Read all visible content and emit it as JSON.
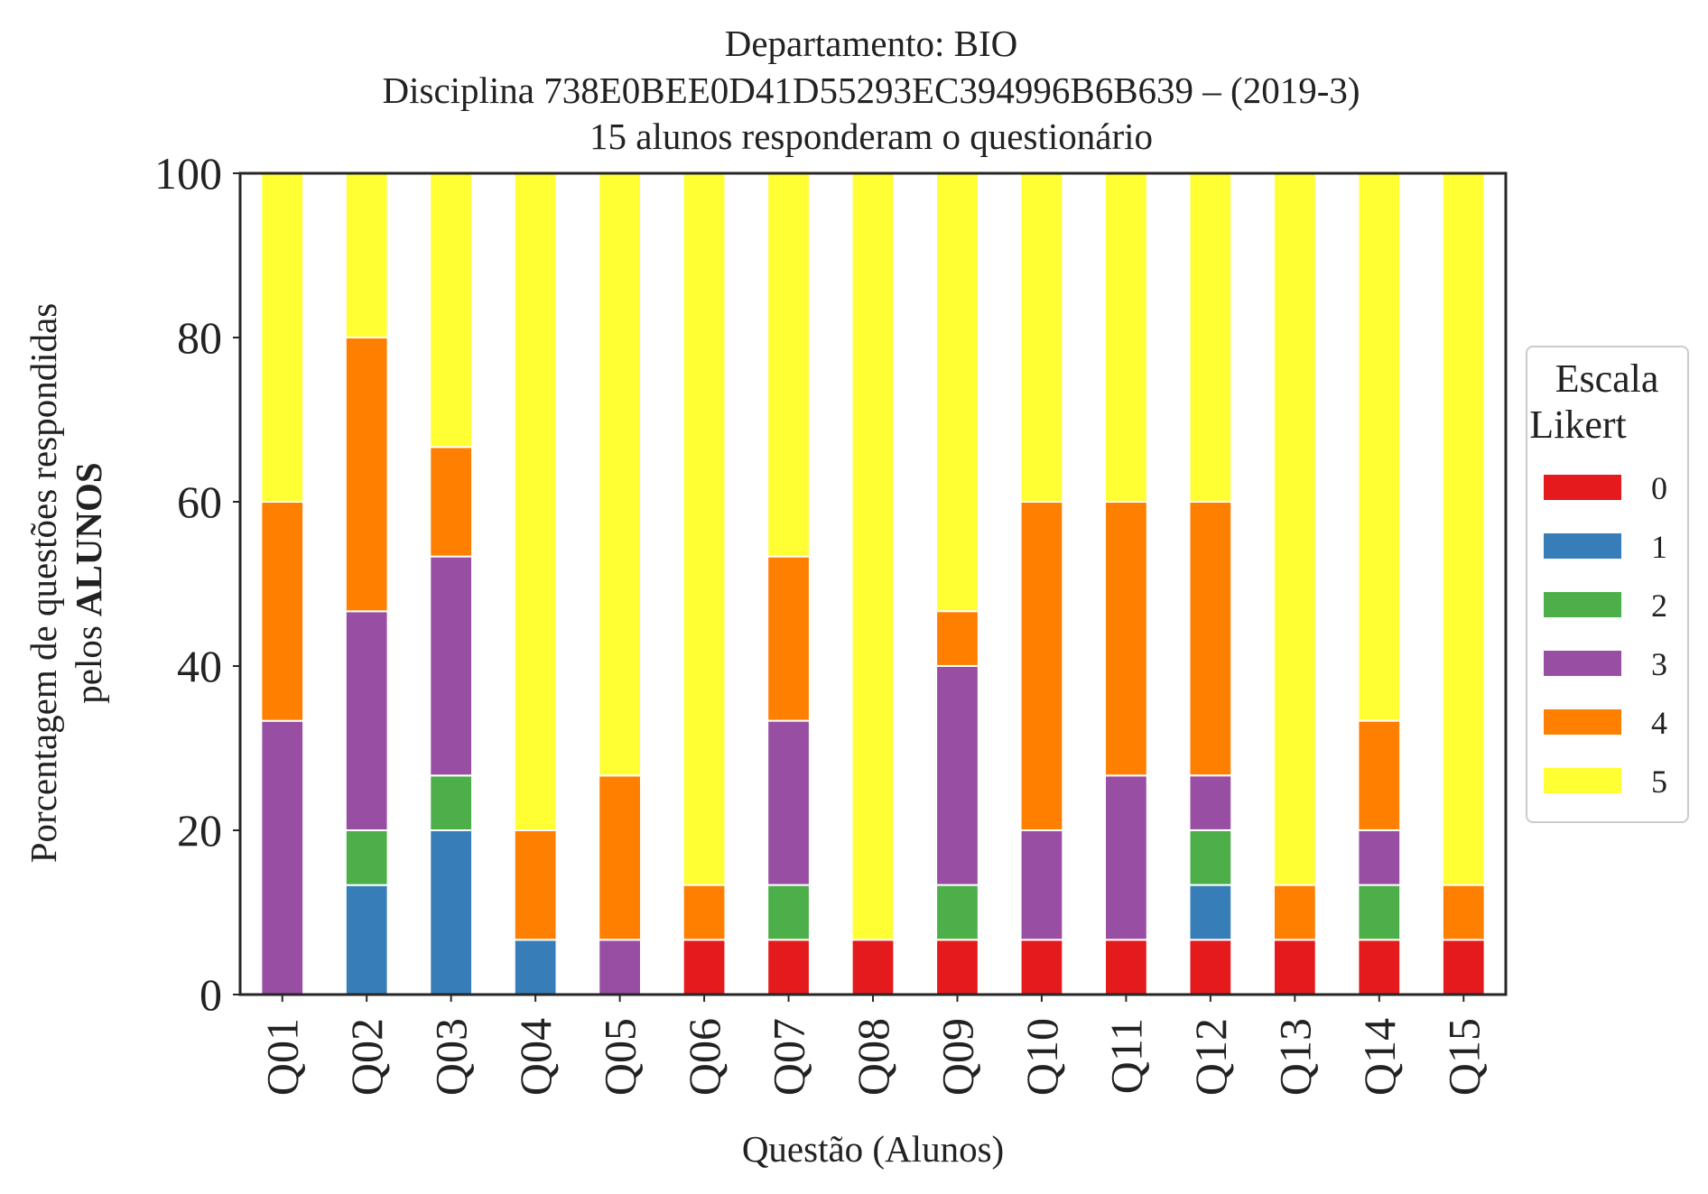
{
  "chart_data": {
    "type": "bar",
    "stacked": true,
    "title": [
      "Departamento: BIO",
      "Disciplina 738E0BEE0D41D55293EC394996B6B639 – (2019-3)",
      "15 alunos responderam o questionário"
    ],
    "xlabel": "Questão (Alunos)",
    "ylabel": [
      "Porcentagem de questões respondidas",
      "pelos",
      "ALUNOS"
    ],
    "ylim": [
      0,
      100
    ],
    "yticks": [
      0,
      20,
      40,
      60,
      80,
      100
    ],
    "grid": false,
    "legend": {
      "title": [
        "Escala",
        "Likert"
      ],
      "placement": "right"
    },
    "categories": [
      "Q01",
      "Q02",
      "Q03",
      "Q04",
      "Q05",
      "Q06",
      "Q07",
      "Q08",
      "Q09",
      "Q10",
      "Q11",
      "Q12",
      "Q13",
      "Q14",
      "Q15"
    ],
    "series": [
      {
        "name": "0",
        "color": "#e41a1c",
        "values": [
          0,
          0,
          0,
          0,
          0,
          6.67,
          6.67,
          6.67,
          6.67,
          6.67,
          6.67,
          6.67,
          6.67,
          6.67,
          6.67
        ]
      },
      {
        "name": "1",
        "color": "#377eb8",
        "values": [
          0,
          13.33,
          20,
          6.67,
          0,
          0,
          0,
          0,
          0,
          0,
          0,
          6.67,
          0,
          0,
          0
        ]
      },
      {
        "name": "2",
        "color": "#4daf4a",
        "values": [
          0,
          6.67,
          6.67,
          0,
          0,
          0,
          6.67,
          0,
          6.67,
          0,
          0,
          6.67,
          0,
          6.67,
          0
        ]
      },
      {
        "name": "3",
        "color": "#984ea3",
        "values": [
          33.33,
          26.67,
          26.67,
          0,
          6.67,
          0,
          20,
          0,
          26.67,
          13.33,
          20,
          6.67,
          0,
          6.67,
          0
        ]
      },
      {
        "name": "4",
        "color": "#ff7f00",
        "values": [
          26.67,
          33.33,
          13.33,
          13.33,
          20,
          6.67,
          20,
          0,
          6.67,
          40,
          33.33,
          33.33,
          6.67,
          13.33,
          6.67
        ]
      },
      {
        "name": "5",
        "color": "#ffff33",
        "values": [
          40,
          20,
          33.33,
          80,
          73.33,
          86.67,
          46.67,
          93.33,
          53.33,
          40,
          40,
          40,
          86.67,
          66.67,
          86.67
        ]
      }
    ]
  }
}
